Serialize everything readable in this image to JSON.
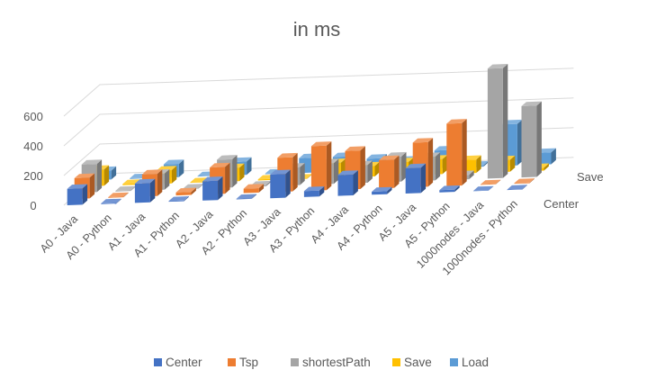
{
  "chart_data": {
    "type": "bar",
    "style": "3d-column",
    "title": "in ms",
    "categories": [
      "A0 - Java",
      "A0 - Python",
      "A1 - Java",
      "A1 - Python",
      "A2 - Java",
      "A2 - Python",
      "A3 - Java",
      "A3 - Python",
      "A4 - Java",
      "A4 - Python",
      "A5 - Java",
      "A5 - Python",
      "1000nodes - Java",
      "1000nodes - Python"
    ],
    "series": [
      {
        "name": "Center",
        "color": "#4472C4",
        "values": [
          110,
          4,
          130,
          5,
          130,
          4,
          160,
          40,
          140,
          20,
          170,
          15,
          2,
          3
        ]
      },
      {
        "name": "Tsp",
        "color": "#ED7D31",
        "values": [
          140,
          4,
          150,
          20,
          180,
          30,
          230,
          300,
          260,
          190,
          300,
          420,
          3,
          4
        ]
      },
      {
        "name": "shortestPath",
        "color": "#A5A5A5",
        "values": [
          190,
          4,
          110,
          4,
          190,
          8,
          120,
          140,
          120,
          170,
          160,
          30,
          740,
          480
        ]
      },
      {
        "name": "Save",
        "color": "#FFC000",
        "values": [
          110,
          8,
          90,
          4,
          90,
          7,
          4,
          100,
          70,
          90,
          100,
          90,
          80,
          20
        ]
      },
      {
        "name": "Load",
        "color": "#5B9BD5",
        "values": [
          60,
          4,
          90,
          3,
          90,
          4,
          100,
          100,
          80,
          60,
          120,
          9,
          280,
          80
        ]
      }
    ],
    "depth_labels": [
      "Center",
      "Save"
    ],
    "yaxis": {
      "ticks": [
        0,
        200,
        400,
        600
      ],
      "range": [
        0,
        800
      ]
    },
    "grid": true,
    "legend": "bottom"
  }
}
